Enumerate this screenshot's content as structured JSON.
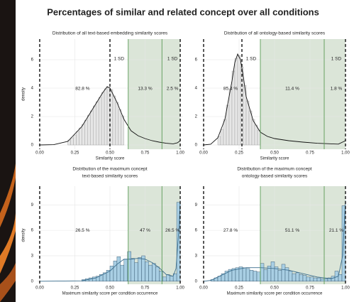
{
  "title": "Percentages of similar and related concept over all conditions",
  "chart_data": [
    {
      "type": "histogram",
      "title": "Distribution of all text-based embedding similarity scores",
      "xlabel": "Similarity score",
      "ylabel": "density",
      "xlim": [
        -0.02,
        1.02
      ],
      "ylim": [
        -0.3,
        7.45
      ],
      "xticks": [
        {
          "value": 0,
          "label": "0.00"
        },
        {
          "value": 0.25,
          "label": "0.25"
        },
        {
          "value": 0.5,
          "label": "0.50"
        },
        {
          "value": 0.75,
          "label": "0.75"
        },
        {
          "value": 1,
          "label": "1.00"
        }
      ],
      "yticks": [
        0,
        2,
        4,
        6
      ],
      "grid": true,
      "bins": [
        0.2,
        0.22,
        0.24,
        0.26,
        0.28,
        0.3,
        0.32,
        0.34,
        0.36,
        0.38,
        0.4,
        0.42,
        0.44,
        0.46,
        0.48,
        0.5,
        0.52,
        0.54,
        0.56,
        0.58,
        0.6
      ],
      "values": [
        0.35,
        0.5,
        0.7,
        0.95,
        1.2,
        1.45,
        1.75,
        2.1,
        2.4,
        2.75,
        3.05,
        3.35,
        3.7,
        3.95,
        4.05,
        3.9,
        3.45,
        3.0,
        2.5,
        2.05
      ],
      "bar_color": "#e6e6e6",
      "bar_edge": "#9a9a9a",
      "curve": {
        "x": [
          0,
          0.1,
          0.2,
          0.3,
          0.35,
          0.4,
          0.45,
          0.48,
          0.5,
          0.55,
          0.6,
          0.65,
          0.7,
          0.75,
          0.8,
          0.85,
          0.9,
          0.95,
          0.98,
          1.0
        ],
        "y": [
          0,
          0.02,
          0.25,
          1.3,
          2.1,
          2.9,
          3.7,
          4.1,
          4.0,
          3.0,
          1.8,
          1.0,
          0.65,
          0.45,
          0.3,
          0.2,
          0.12,
          0.08,
          0.15,
          0.3
        ]
      },
      "curve_color": "#111111",
      "dashed_lines": [
        0,
        0.5,
        1.0
      ],
      "shaded": [
        0.63,
        1.0
      ],
      "green_line": 0.87,
      "sd_labels": [
        "1 SD",
        "1 SD"
      ],
      "percentages": [
        82.8,
        13.3,
        2.5
      ],
      "percentage_labels": [
        "82.8 %",
        "13.3 %",
        "2.5 %"
      ]
    },
    {
      "type": "histogram",
      "title": "Distribution of all ontology-based similarity scores",
      "xlabel": "Similarity score",
      "xlim": [
        -0.02,
        1.02
      ],
      "ylim": [
        -0.3,
        7.45
      ],
      "xticks": [
        {
          "value": 0,
          "label": "0.00"
        },
        {
          "value": 0.25,
          "label": "0.25"
        },
        {
          "value": 0.5,
          "label": "0.50"
        },
        {
          "value": 0.75,
          "label": "0.75"
        },
        {
          "value": 1,
          "label": "1.00"
        }
      ],
      "yticks": [
        0,
        2,
        4,
        6
      ],
      "grid": true,
      "bins": [
        0.1,
        0.12,
        0.14,
        0.16,
        0.18,
        0.2,
        0.22,
        0.24,
        0.26,
        0.28,
        0.3,
        0.32,
        0.34,
        0.36,
        0.38,
        0.4
      ],
      "values": [
        0.6,
        1.1,
        1.8,
        2.8,
        3.9,
        5.2,
        6.1,
        6.3,
        5.5,
        4.2,
        3.1,
        2.4,
        1.8,
        1.4,
        1.05
      ],
      "bar_color": "#e6e6e6",
      "bar_edge": "#9a9a9a",
      "curve": {
        "x": [
          0,
          0.05,
          0.1,
          0.15,
          0.2,
          0.22,
          0.24,
          0.26,
          0.28,
          0.3,
          0.35,
          0.4,
          0.45,
          0.5,
          0.6,
          0.7,
          0.8,
          0.9,
          0.95,
          1.0
        ],
        "y": [
          0,
          0.05,
          0.5,
          1.8,
          4.5,
          5.8,
          6.4,
          6.0,
          4.8,
          3.4,
          1.7,
          0.9,
          0.6,
          0.45,
          0.3,
          0.2,
          0.12,
          0.08,
          0.06,
          0.3
        ]
      },
      "curve_color": "#111111",
      "dashed_lines": [
        0,
        0.27,
        1.0
      ],
      "shaded": [
        0.4,
        1.0
      ],
      "green_line": 0.85,
      "sd_labels": [
        "1 SD",
        "1 SD"
      ],
      "percentages": [
        85.4,
        11.4,
        1.8
      ],
      "percentage_labels": [
        "85.4 %",
        "11.4 %",
        "1.8 %"
      ]
    },
    {
      "type": "histogram",
      "title": [
        "Distribution of the maximum concept",
        "text-based similarity scores"
      ],
      "xlabel": "Maximum similarity score per condition occurrence",
      "ylabel": "density",
      "xlim": [
        -0.02,
        1.02
      ],
      "ylim": [
        -0.35,
        11.2
      ],
      "xticks": [
        {
          "value": 0,
          "label": "0.00"
        },
        {
          "value": 0.25,
          "label": "0.25"
        },
        {
          "value": 0.5,
          "label": "0.50"
        },
        {
          "value": 0.75,
          "label": "0.75"
        },
        {
          "value": 1,
          "label": "1.00"
        }
      ],
      "yticks": [
        0,
        3,
        6,
        9
      ],
      "grid": true,
      "bins": [
        0.3,
        0.325,
        0.35,
        0.375,
        0.4,
        0.425,
        0.45,
        0.475,
        0.5,
        0.525,
        0.55,
        0.575,
        0.6,
        0.625,
        0.65,
        0.675,
        0.7,
        0.725,
        0.75,
        0.775,
        0.8,
        0.825,
        0.85,
        0.875,
        0.9,
        0.925,
        0.95,
        0.975,
        1.0
      ],
      "values": [
        0.2,
        0.3,
        0.4,
        0.5,
        0.6,
        0.8,
        1.0,
        1.3,
        1.8,
        2.4,
        2.9,
        1.9,
        2.6,
        3.5,
        2.7,
        2.2,
        2.8,
        3.0,
        2.3,
        1.9,
        2.1,
        1.7,
        1.2,
        0.5,
        0.8,
        0.6,
        0.9,
        9.3
      ],
      "bar_color": "#a9cfe4",
      "bar_edge": "#284a63",
      "curve": {
        "x": [
          0,
          0.3,
          0.4,
          0.5,
          0.55,
          0.6,
          0.65,
          0.7,
          0.75,
          0.8,
          0.85,
          0.9,
          0.95,
          0.97,
          0.99,
          1.0
        ],
        "y": [
          0,
          0.05,
          0.4,
          1.2,
          2.0,
          2.6,
          2.6,
          2.7,
          2.6,
          2.2,
          1.6,
          0.8,
          0.6,
          1.5,
          6,
          9.5
        ]
      },
      "curve_color": "#3c6f8f",
      "dashed_lines": [
        0,
        1.0
      ],
      "shaded": [
        0.63,
        1.0
      ],
      "green_line": 0.87,
      "percentages": [
        26.5,
        47,
        26.5
      ],
      "percentage_labels": [
        "26.5 %",
        "47 %",
        "26.5 %"
      ]
    },
    {
      "type": "histogram",
      "title": [
        "Distribution of the maximum concept",
        "ontology-based similarity scores"
      ],
      "xlabel": "Maximum similarity score per condition occurrence",
      "xlim": [
        -0.02,
        1.02
      ],
      "ylim": [
        -0.35,
        11.2
      ],
      "xticks": [
        {
          "value": 0,
          "label": "0.00"
        },
        {
          "value": 0.25,
          "label": "0.25"
        },
        {
          "value": 0.5,
          "label": "0.50"
        },
        {
          "value": 0.75,
          "label": "0.75"
        },
        {
          "value": 1,
          "label": "1.00"
        }
      ],
      "yticks": [
        0,
        3,
        6,
        9
      ],
      "grid": true,
      "bins": [
        0.05,
        0.075,
        0.1,
        0.125,
        0.15,
        0.175,
        0.2,
        0.225,
        0.25,
        0.275,
        0.3,
        0.325,
        0.35,
        0.375,
        0.4,
        0.425,
        0.45,
        0.475,
        0.5,
        0.525,
        0.55,
        0.575,
        0.6,
        0.625,
        0.65,
        0.675,
        0.7,
        0.725,
        0.75,
        0.775,
        0.8,
        0.825,
        0.85,
        0.875,
        0.9,
        0.925,
        0.95,
        0.975,
        1.0
      ],
      "values": [
        0.2,
        0.4,
        0.6,
        0.9,
        1.2,
        1.4,
        1.5,
        1.6,
        1.7,
        1.6,
        1.5,
        1.3,
        1.2,
        1.1,
        2.1,
        1.4,
        1.8,
        2.3,
        1.7,
        1.3,
        2.0,
        1.6,
        1.2,
        0.9,
        1.0,
        0.8,
        0.7,
        0.5,
        0.5,
        0.4,
        0.4,
        0.3,
        0.3,
        0.4,
        0.6,
        1.2,
        0.8,
        8.9
      ],
      "bar_color": "#a9cfe4",
      "bar_edge": "#284a63",
      "curve": {
        "x": [
          0,
          0.05,
          0.1,
          0.2,
          0.3,
          0.4,
          0.5,
          0.6,
          0.7,
          0.8,
          0.9,
          0.95,
          0.98,
          1.0
        ],
        "y": [
          0,
          0.1,
          0.5,
          1.3,
          1.6,
          1.6,
          1.5,
          1.3,
          0.9,
          0.5,
          0.3,
          0.6,
          3,
          9.5
        ]
      },
      "curve_color": "#3c6f8f",
      "dashed_lines": [
        0,
        1.0
      ],
      "shaded": [
        0.4,
        1.0
      ],
      "green_line": 0.85,
      "percentages": [
        27.8,
        51.1,
        21.1
      ],
      "percentage_labels": [
        "27.8 %",
        "51.1 %",
        "21.1 %"
      ]
    }
  ]
}
